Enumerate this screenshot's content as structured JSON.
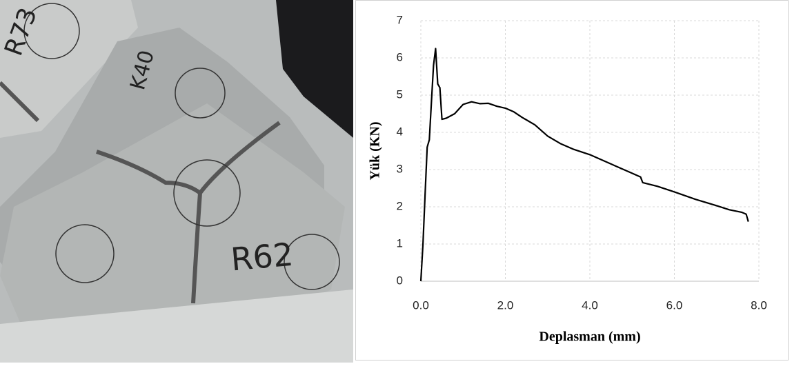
{
  "chart_data": {
    "type": "line",
    "x_label": "Deplasman (mm)",
    "y_label": "Yük (KN)",
    "x": [
      0,
      0.05,
      0.1,
      0.15,
      0.2,
      0.25,
      0.3,
      0.35,
      0.4,
      0.45,
      0.5,
      0.6,
      0.8,
      1.0,
      1.2,
      1.4,
      1.6,
      1.8,
      2.0,
      2.2,
      2.4,
      2.7,
      3.0,
      3.3,
      3.6,
      4.0,
      4.5,
      5.0,
      5.2,
      5.25,
      5.6,
      6.0,
      6.5,
      7.0,
      7.3,
      7.6,
      7.7,
      7.75
    ],
    "values": [
      0,
      1.0,
      2.3,
      3.6,
      3.8,
      4.8,
      5.8,
      6.25,
      5.3,
      5.2,
      4.35,
      4.38,
      4.5,
      4.75,
      4.82,
      4.77,
      4.78,
      4.7,
      4.65,
      4.55,
      4.4,
      4.2,
      3.9,
      3.7,
      3.55,
      3.4,
      3.15,
      2.9,
      2.8,
      2.65,
      2.55,
      2.4,
      2.2,
      2.03,
      1.92,
      1.85,
      1.8,
      1.6
    ],
    "color": "#000000",
    "xlim": [
      0,
      8
    ],
    "ylim": [
      0,
      7
    ],
    "xticks": [
      {
        "value": 0,
        "label": "0.0"
      },
      {
        "value": 2,
        "label": "2.0"
      },
      {
        "value": 4,
        "label": "4.0"
      },
      {
        "value": 6,
        "label": "6.0"
      },
      {
        "value": 8,
        "label": "8.0"
      }
    ],
    "yticks": [
      0,
      1,
      2,
      3,
      4,
      5,
      6,
      7
    ],
    "grid": true
  },
  "photo": {
    "labels": [
      "R62",
      "R73",
      "K40"
    ]
  }
}
